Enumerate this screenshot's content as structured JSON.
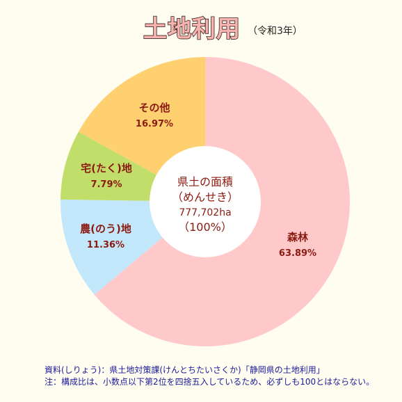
{
  "header": {
    "title": "土地利用",
    "subtitle": "（令和3年）"
  },
  "chart_data": {
    "type": "pie",
    "title": "土地利用",
    "subtitle": "（令和3年）",
    "categories": [
      "森林",
      "農(のう)地",
      "宅(たく)地",
      "その他"
    ],
    "values": [
      63.89,
      11.36,
      7.79,
      16.97
    ],
    "value_labels": [
      "63.89%",
      "11.36%",
      "7.79%",
      "16.97%"
    ],
    "colors": [
      "#ffc9c9",
      "#c2e7fb",
      "#c2de6a",
      "#ffd070"
    ],
    "center": {
      "line1": "県土の面積",
      "line2": "（めんせき）",
      "line3": "777,702ha",
      "line4": "（100%）"
    }
  },
  "footer": {
    "source": "資料(しりょう)：県土地対策課(けんとちたいさくか)「静岡県の土地利用」",
    "note": "注：構成比は、小数点以下第2位を四捨五入しているため、必ずしも100とはならない。"
  }
}
